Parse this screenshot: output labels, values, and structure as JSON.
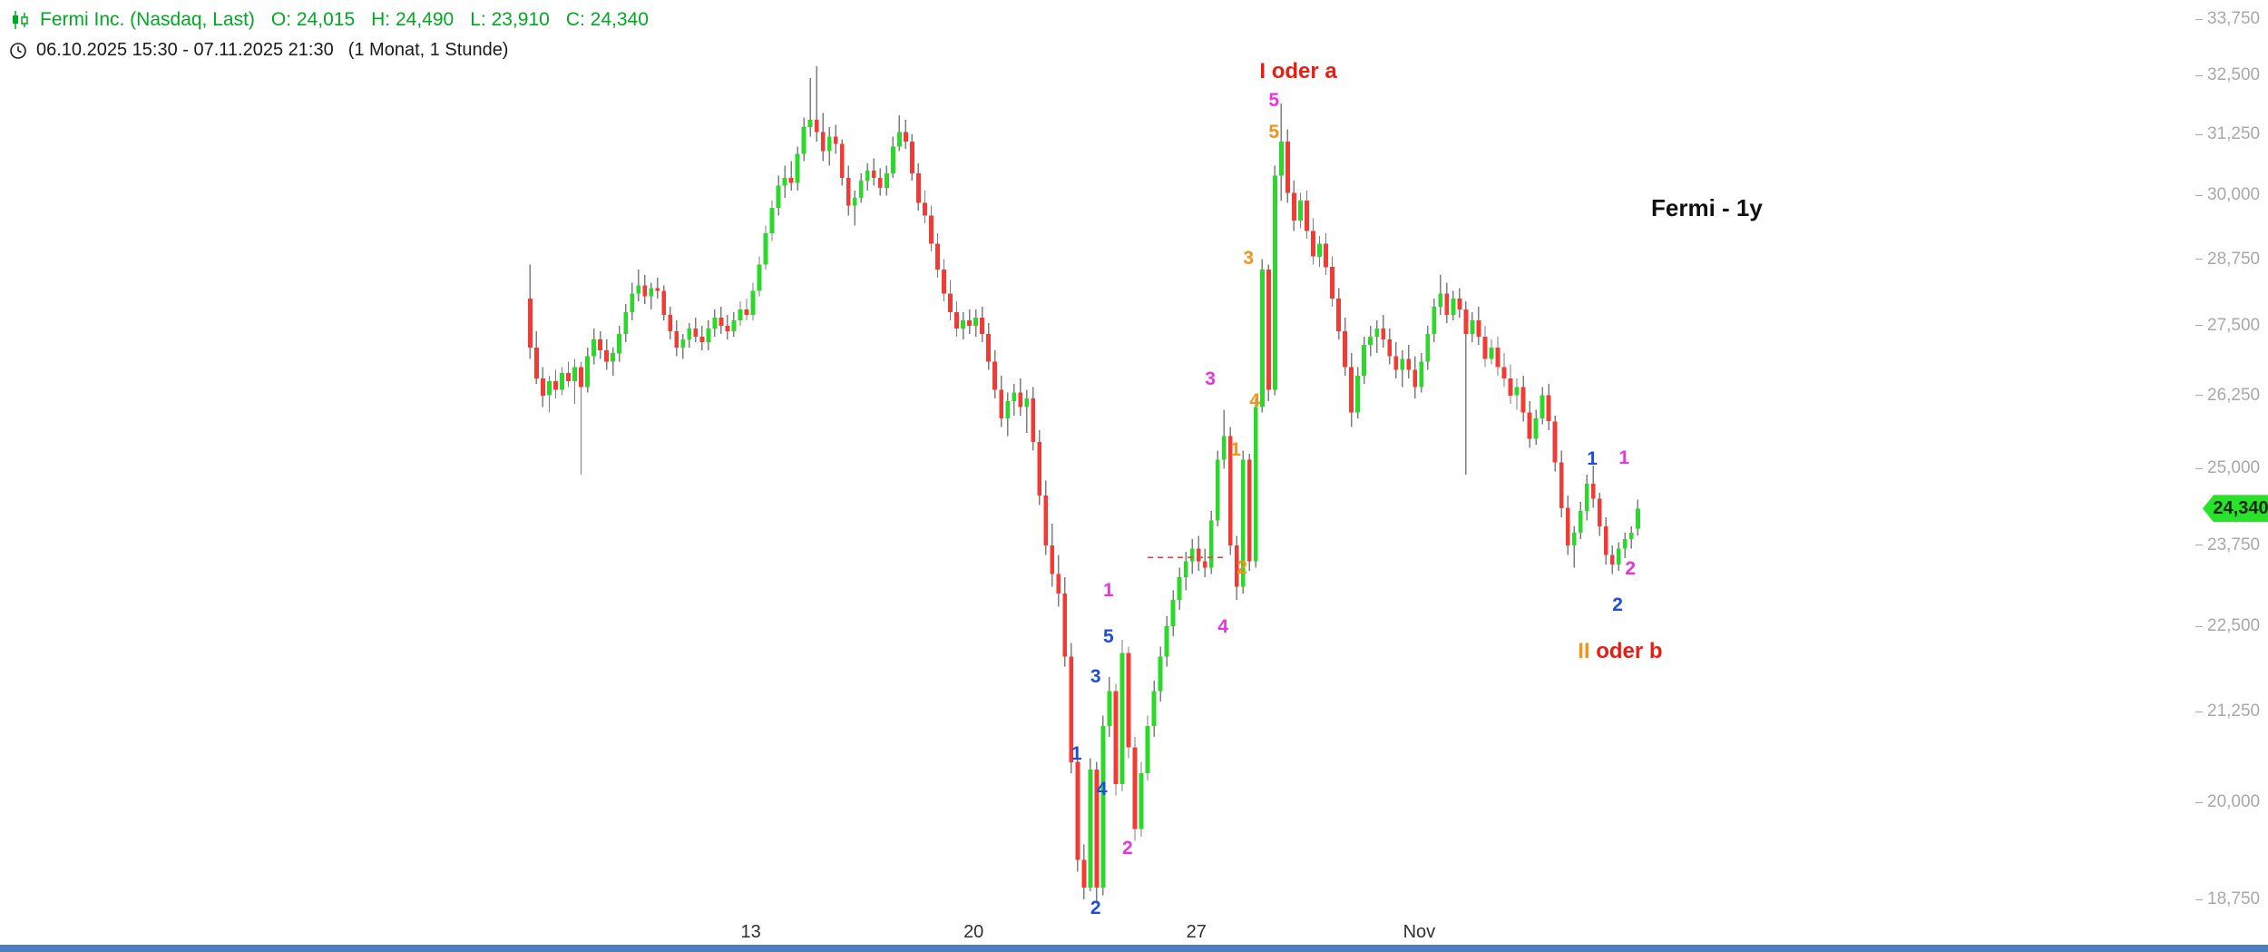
{
  "colors": {
    "up": "#2bd92b",
    "down": "#f23b35",
    "wick": "#7e7e7e",
    "blue": "#1d4ed8",
    "magenta": "#e935e0",
    "orange": "#f0941e",
    "red": "#ea1d12",
    "header_green": "#00a823",
    "axis_text": "#a8a8a8",
    "xaxis_text": "#2f2f2f",
    "badge_bg": "#2be22b",
    "badge_text": "#0b2a0b",
    "scrollbar": "#4d7fc0"
  },
  "header": {
    "instrument": "Fermi Inc. (Nasdaq, Last)",
    "ohlc": {
      "o": "O: 24,015",
      "h": "H: 24,490",
      "l": "L: 23,910",
      "c": "C: 24,340"
    },
    "timerange": "06.10.2025 15:30 - 07.11.2025 21:30",
    "interval": "(1 Monat, 1 Stunde)"
  },
  "chart_label": "Fermi - 1y",
  "chart_data": {
    "type": "candlestick",
    "title": "Fermi - 1y",
    "instrument": "Fermi Inc. (Nasdaq, Last)",
    "interval": "1 Stunde",
    "visible_range": "1 Monat (06.10.2025 15:30 - 07.11.2025 21:30)",
    "last_price": {
      "label": "24,340",
      "value": 24340
    },
    "y_axis": {
      "scale": "log",
      "ticks": [
        {
          "value": 33750,
          "label": "33,750"
        },
        {
          "value": 32500,
          "label": "32,500"
        },
        {
          "value": 31250,
          "label": "31,250"
        },
        {
          "value": 30000,
          "label": "30,000"
        },
        {
          "value": 28750,
          "label": "28,750"
        },
        {
          "value": 27500,
          "label": "27,500"
        },
        {
          "value": 26250,
          "label": "26,250"
        },
        {
          "value": 25000,
          "label": "25,000"
        },
        {
          "value": 23750,
          "label": "23,750"
        },
        {
          "value": 22500,
          "label": "22,500"
        },
        {
          "value": 21250,
          "label": "21,250"
        },
        {
          "value": 20000,
          "label": "20,000"
        },
        {
          "value": 18750,
          "label": "18,750"
        }
      ]
    },
    "x_axis": {
      "sessions_per_day": 7,
      "days": 25,
      "labels": [
        {
          "text": "13",
          "day_index": 5
        },
        {
          "text": "20",
          "day_index": 10
        },
        {
          "text": "27",
          "day_index": 15
        },
        {
          "text": "Nov",
          "day_index": 20
        }
      ]
    },
    "candles_ohlc": [
      [
        28000,
        28650,
        26900,
        27100
      ],
      [
        27100,
        27400,
        26450,
        26550
      ],
      [
        26550,
        26750,
        26050,
        26250
      ],
      [
        26250,
        26600,
        25950,
        26500
      ],
      [
        26500,
        26700,
        26200,
        26350
      ],
      [
        26350,
        26750,
        26250,
        26650
      ],
      [
        26650,
        26850,
        26400,
        26500
      ],
      [
        26500,
        26900,
        26100,
        26750
      ],
      [
        26750,
        26850,
        24900,
        26400
      ],
      [
        26400,
        27100,
        26300,
        26950
      ],
      [
        26950,
        27450,
        26800,
        27250
      ],
      [
        27250,
        27400,
        26900,
        27050
      ],
      [
        27050,
        27250,
        26700,
        26850
      ],
      [
        26850,
        27100,
        26600,
        27000
      ],
      [
        27000,
        27500,
        26850,
        27350
      ],
      [
        27350,
        27900,
        27200,
        27750
      ],
      [
        27750,
        28300,
        27600,
        28100
      ],
      [
        28100,
        28550,
        27950,
        28250
      ],
      [
        28250,
        28450,
        27900,
        28050
      ],
      [
        28050,
        28300,
        27800,
        28200
      ],
      [
        28200,
        28400,
        28000,
        28150
      ],
      [
        28150,
        28250,
        27600,
        27700
      ],
      [
        27700,
        27850,
        27250,
        27400
      ],
      [
        27400,
        27600,
        26950,
        27100
      ],
      [
        27100,
        27350,
        26900,
        27250
      ],
      [
        27250,
        27550,
        27100,
        27450
      ],
      [
        27450,
        27650,
        27200,
        27300
      ],
      [
        27300,
        27500,
        27050,
        27200
      ],
      [
        27200,
        27600,
        27050,
        27450
      ],
      [
        27450,
        27800,
        27300,
        27650
      ],
      [
        27650,
        27850,
        27350,
        27500
      ],
      [
        27500,
        27700,
        27250,
        27400
      ],
      [
        27400,
        27750,
        27300,
        27600
      ],
      [
        27600,
        27950,
        27500,
        27800
      ],
      [
        27800,
        28000,
        27600,
        27700
      ],
      [
        27700,
        28300,
        27600,
        28150
      ],
      [
        28150,
        28800,
        28050,
        28650
      ],
      [
        28650,
        29400,
        28550,
        29250
      ],
      [
        29250,
        29900,
        29100,
        29750
      ],
      [
        29750,
        30400,
        29600,
        30200
      ],
      [
        30200,
        30600,
        29950,
        30350
      ],
      [
        30350,
        30700,
        30100,
        30250
      ],
      [
        30250,
        31000,
        30100,
        30850
      ],
      [
        30850,
        31600,
        30700,
        31400
      ],
      [
        31400,
        32450,
        31200,
        31550
      ],
      [
        31550,
        32700,
        31100,
        31300
      ],
      [
        31300,
        31700,
        30700,
        30900
      ],
      [
        30900,
        31400,
        30600,
        31200
      ],
      [
        31200,
        31450,
        30850,
        31050
      ],
      [
        31050,
        31150,
        30200,
        30350
      ],
      [
        30350,
        30600,
        29600,
        29800
      ],
      [
        29800,
        30100,
        29400,
        29950
      ],
      [
        29950,
        30450,
        29850,
        30300
      ],
      [
        30300,
        30650,
        30100,
        30500
      ],
      [
        30500,
        30750,
        30200,
        30350
      ],
      [
        30350,
        30550,
        30000,
        30150
      ],
      [
        30150,
        30600,
        30000,
        30450
      ],
      [
        30450,
        31200,
        30350,
        31000
      ],
      [
        31000,
        31650,
        30900,
        31300
      ],
      [
        31300,
        31550,
        30950,
        31100
      ],
      [
        31100,
        31250,
        30300,
        30450
      ],
      [
        30450,
        30650,
        29700,
        29850
      ],
      [
        29850,
        30100,
        29450,
        29600
      ],
      [
        29600,
        29800,
        28900,
        29050
      ],
      [
        29050,
        29250,
        28400,
        28550
      ],
      [
        28550,
        28750,
        27950,
        28100
      ],
      [
        28100,
        28350,
        27600,
        27750
      ],
      [
        27750,
        27950,
        27300,
        27450
      ],
      [
        27450,
        27750,
        27250,
        27600
      ],
      [
        27600,
        27800,
        27350,
        27500
      ],
      [
        27500,
        27800,
        27300,
        27650
      ],
      [
        27650,
        27850,
        27200,
        27350
      ],
      [
        27350,
        27550,
        26700,
        26850
      ],
      [
        26850,
        27050,
        26200,
        26350
      ],
      [
        26350,
        26600,
        25700,
        25850
      ],
      [
        25850,
        26300,
        25550,
        26150
      ],
      [
        26150,
        26450,
        25900,
        26300
      ],
      [
        26300,
        26550,
        25900,
        26050
      ],
      [
        26050,
        26350,
        25600,
        26200
      ],
      [
        26200,
        26400,
        25300,
        25450
      ],
      [
        25450,
        25650,
        24400,
        24550
      ],
      [
        24550,
        24800,
        23600,
        23750
      ],
      [
        23750,
        24100,
        23100,
        23300
      ],
      [
        23300,
        23600,
        22800,
        23000
      ],
      [
        23000,
        23250,
        21900,
        22050
      ],
      [
        22050,
        22250,
        20400,
        20550
      ],
      [
        20550,
        20750,
        19100,
        19250
      ],
      [
        19250,
        19450,
        18750,
        18900
      ],
      [
        18900,
        20600,
        18850,
        20450
      ],
      [
        20450,
        20550,
        18700,
        18900
      ],
      [
        18900,
        21200,
        18800,
        21050
      ],
      [
        21050,
        21750,
        20900,
        21550
      ],
      [
        21550,
        21650,
        20100,
        20250
      ],
      [
        20250,
        22300,
        20150,
        22100
      ],
      [
        22100,
        22200,
        20600,
        20750
      ],
      [
        20750,
        20900,
        19500,
        19650
      ],
      [
        19650,
        20550,
        19550,
        20400
      ],
      [
        20400,
        21200,
        20300,
        21050
      ],
      [
        21050,
        21700,
        20900,
        21550
      ],
      [
        21550,
        22200,
        21400,
        22050
      ],
      [
        22050,
        22650,
        21900,
        22500
      ],
      [
        22500,
        23050,
        22350,
        22900
      ],
      [
        22900,
        23400,
        22750,
        23250
      ],
      [
        23250,
        23650,
        23050,
        23500
      ],
      [
        23500,
        23850,
        23300,
        23700
      ],
      [
        23700,
        23900,
        23350,
        23500
      ],
      [
        23500,
        23700,
        23250,
        23400
      ],
      [
        23400,
        24300,
        23300,
        24150
      ],
      [
        24150,
        25300,
        24050,
        25150
      ],
      [
        25150,
        26000,
        25000,
        25550
      ],
      [
        25550,
        25700,
        23600,
        23750
      ],
      [
        23750,
        23900,
        22900,
        23100
      ],
      [
        23100,
        25300,
        23000,
        25150
      ],
      [
        25150,
        25250,
        23350,
        23500
      ],
      [
        23500,
        26200,
        23400,
        26050
      ],
      [
        26050,
        28750,
        25950,
        28550
      ],
      [
        28550,
        28650,
        26150,
        26350
      ],
      [
        26350,
        30600,
        26250,
        30400
      ],
      [
        30400,
        31900,
        29900,
        31100
      ],
      [
        31100,
        31350,
        29850,
        30050
      ],
      [
        30050,
        30300,
        29300,
        29500
      ],
      [
        29500,
        30050,
        29350,
        29900
      ],
      [
        29900,
        30100,
        29150,
        29300
      ],
      [
        29300,
        29550,
        28650,
        28800
      ],
      [
        28800,
        29200,
        28600,
        29050
      ],
      [
        29050,
        29250,
        28450,
        28600
      ],
      [
        28600,
        28800,
        27850,
        28000
      ],
      [
        28000,
        28200,
        27250,
        27400
      ],
      [
        27400,
        27650,
        26600,
        26750
      ],
      [
        26750,
        27000,
        25700,
        25950
      ],
      [
        25950,
        26750,
        25850,
        26600
      ],
      [
        26600,
        27300,
        26450,
        27150
      ],
      [
        27150,
        27500,
        26950,
        27300
      ],
      [
        27300,
        27600,
        27000,
        27450
      ],
      [
        27450,
        27700,
        27100,
        27250
      ],
      [
        27250,
        27450,
        26800,
        26950
      ],
      [
        26950,
        27200,
        26550,
        26700
      ],
      [
        26700,
        27050,
        26400,
        26900
      ],
      [
        26900,
        27150,
        26550,
        26700
      ],
      [
        26700,
        26950,
        26200,
        26400
      ],
      [
        26400,
        27000,
        26300,
        26850
      ],
      [
        26850,
        27500,
        26700,
        27350
      ],
      [
        27350,
        28000,
        27200,
        27850
      ],
      [
        27850,
        28450,
        27700,
        28100
      ],
      [
        28100,
        28300,
        27550,
        27700
      ],
      [
        27700,
        28150,
        27600,
        28000
      ],
      [
        28000,
        28200,
        27650,
        27800
      ],
      [
        27800,
        27950,
        24900,
        27350
      ],
      [
        27350,
        27750,
        27200,
        27600
      ],
      [
        27600,
        27850,
        27150,
        27300
      ],
      [
        27300,
        27500,
        26750,
        26900
      ],
      [
        26900,
        27250,
        26800,
        27100
      ],
      [
        27100,
        27300,
        26600,
        26750
      ],
      [
        26750,
        27000,
        26400,
        26550
      ],
      [
        26550,
        26800,
        26100,
        26250
      ],
      [
        26250,
        26550,
        26000,
        26400
      ],
      [
        26400,
        26600,
        25800,
        25950
      ],
      [
        25950,
        26150,
        25350,
        25500
      ],
      [
        25500,
        26000,
        25400,
        25850
      ],
      [
        25850,
        26400,
        25750,
        26250
      ],
      [
        26250,
        26450,
        25650,
        25800
      ],
      [
        25800,
        25900,
        24950,
        25100
      ],
      [
        25100,
        25300,
        24200,
        24350
      ],
      [
        24350,
        24550,
        23600,
        23750
      ],
      [
        23750,
        24050,
        23400,
        23950
      ],
      [
        23950,
        24450,
        23850,
        24300
      ],
      [
        24300,
        24900,
        24150,
        24750
      ],
      [
        24750,
        25050,
        24350,
        24500
      ],
      [
        24500,
        24600,
        23900,
        24050
      ],
      [
        24050,
        24200,
        23450,
        23600
      ],
      [
        23600,
        23750,
        23300,
        23450
      ],
      [
        23450,
        23800,
        23350,
        23700
      ],
      [
        23700,
        23950,
        23550,
        23850
      ],
      [
        23850,
        24050,
        23700,
        23950
      ],
      [
        24015,
        24490,
        23910,
        24340
      ]
    ],
    "wave_labels": [
      {
        "text": "1",
        "degree": "blue",
        "i": 86,
        "price": 20650
      },
      {
        "text": "2",
        "degree": "blue",
        "i": 89,
        "price": 18630
      },
      {
        "text": "3",
        "degree": "blue",
        "i": 89,
        "price": 21740
      },
      {
        "text": "4",
        "degree": "blue",
        "i": 90,
        "price": 20160
      },
      {
        "text": "5",
        "degree": "blue",
        "i": 91,
        "price": 22320
      },
      {
        "text": "1",
        "degree": "magenta",
        "i": 91,
        "price": 23030
      },
      {
        "text": "2",
        "degree": "magenta",
        "i": 94,
        "price": 19380
      },
      {
        "text": "3",
        "degree": "magenta",
        "i": 107,
        "price": 26510
      },
      {
        "text": "4",
        "degree": "magenta",
        "i": 109,
        "price": 22470
      },
      {
        "text": "5",
        "degree": "magenta",
        "i": 117,
        "price": 31930
      },
      {
        "text": "1",
        "degree": "orange",
        "i": 111,
        "price": 25290
      },
      {
        "text": "2",
        "degree": "orange",
        "i": 112,
        "price": 23380
      },
      {
        "text": "3",
        "degree": "orange",
        "i": 113,
        "price": 28740
      },
      {
        "text": "4",
        "degree": "orange",
        "i": 114,
        "price": 26140
      },
      {
        "text": "5",
        "degree": "orange",
        "i": 117,
        "price": 31260
      },
      {
        "text": "1",
        "degree": "blue",
        "i": 167,
        "price": 25140
      },
      {
        "text": "2",
        "degree": "blue",
        "i": 171,
        "price": 22810
      },
      {
        "text": "1",
        "degree": "magenta",
        "i": 172,
        "price": 25160
      },
      {
        "text": "2",
        "degree": "magenta",
        "i": 173,
        "price": 23360
      }
    ],
    "text_annotations": [
      {
        "i": 116,
        "price": 32560,
        "parts": [
          {
            "text": "I ",
            "color": "red"
          },
          {
            "text": "oder a",
            "color": "red"
          }
        ]
      },
      {
        "i": 166,
        "price": 22110,
        "parts": [
          {
            "text": "II ",
            "color": "orange"
          },
          {
            "text": "oder b",
            "color": "red"
          }
        ]
      }
    ],
    "dashed_line": {
      "price": 23560,
      "from_index": 97,
      "to_index": 109
    }
  }
}
